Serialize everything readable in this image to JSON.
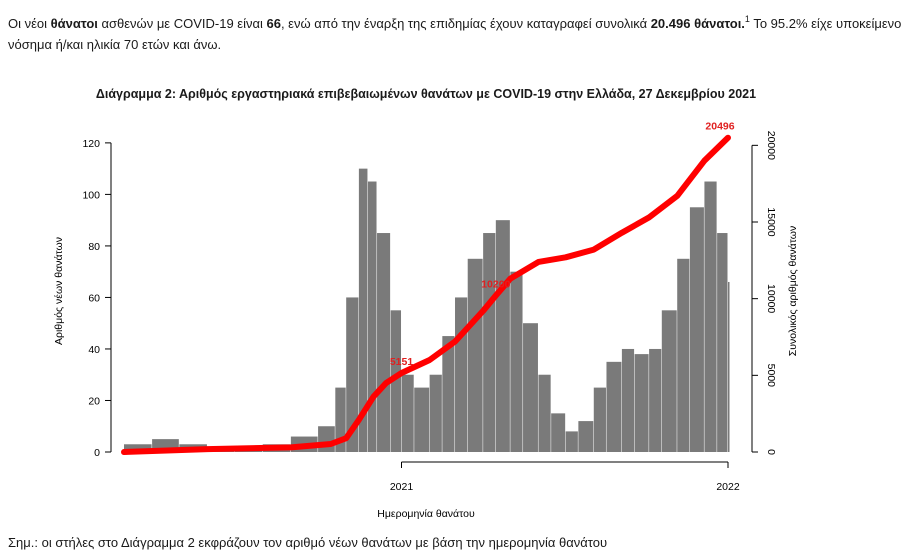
{
  "intro": {
    "p1": "Οι νέοι ",
    "b1": "θάνατοι",
    "p2": " ασθενών με COVID-19 είναι ",
    "b2": "66",
    "p3": ", ενώ από την έναρξη της επιδημίας έχουν καταγραφεί συνολικά ",
    "b3": "20.496 θάνατοι.",
    "sup": "1",
    "p4": " Το 95.2% είχε υποκείμενο νόσημα ή/και ηλικία 70 ετών και άνω."
  },
  "footnote": "Σημ.: οι στήλες στο Διάγραμμα 2 εκφράζουν τον αριθμό νέων θανάτων με βάση την ημερομηνία θανάτου",
  "colors": {
    "bars": "#7a7a7a",
    "cumulative_line": "#ff0000",
    "annotation": "#e02020"
  },
  "chart_data": {
    "type": "bar",
    "title": "Διάγραμμα 2: Αριθμός εργαστηριακά επιβεβαιωμένων θανάτων με COVID-19 στην Ελλάδα, 27 Δεκεμβρίου 2021",
    "xlabel": "Ημερομηνία θανάτου",
    "ylabel": "Αριθμός νέων θανάτων",
    "y2label": "Συνολικός αριθμός θανάτων",
    "x_ticks": [
      "2021",
      "2022"
    ],
    "yticks": [
      "0",
      "20",
      "40",
      "60",
      "80",
      "100",
      "120"
    ],
    "y2ticks": [
      "0",
      "5000",
      "10000",
      "15000",
      "20000"
    ],
    "ylim": [
      0,
      125
    ],
    "y2lim": [
      0,
      21000
    ],
    "x_range": [
      "2020-03-01",
      "2021-12-27"
    ],
    "series": [
      {
        "kind": "bar",
        "values_by_period": [
          {
            "period": "2020-03-01",
            "value": 3
          },
          {
            "period": "2020-04-01",
            "value": 5
          },
          {
            "period": "2020-05-01",
            "value": 3
          },
          {
            "period": "2020-06-01",
            "value": 1
          },
          {
            "period": "2020-07-01",
            "value": 1
          },
          {
            "period": "2020-08-01",
            "value": 3
          },
          {
            "period": "2020-09-01",
            "value": 6
          },
          {
            "period": "2020-10-01",
            "value": 10
          },
          {
            "period": "2020-10-20",
            "value": 25
          },
          {
            "period": "2020-11-01",
            "value": 60
          },
          {
            "period": "2020-11-15",
            "value": 110
          },
          {
            "period": "2020-11-25",
            "value": 105
          },
          {
            "period": "2020-12-05",
            "value": 85
          },
          {
            "period": "2020-12-20",
            "value": 55
          },
          {
            "period": "2021-01-01",
            "value": 30
          },
          {
            "period": "2021-01-15",
            "value": 25
          },
          {
            "period": "2021-02-01",
            "value": 30
          },
          {
            "period": "2021-02-15",
            "value": 45
          },
          {
            "period": "2021-03-01",
            "value": 60
          },
          {
            "period": "2021-03-15",
            "value": 75
          },
          {
            "period": "2021-04-01",
            "value": 85
          },
          {
            "period": "2021-04-15",
            "value": 90
          },
          {
            "period": "2021-05-01",
            "value": 70
          },
          {
            "period": "2021-05-15",
            "value": 50
          },
          {
            "period": "2021-06-01",
            "value": 30
          },
          {
            "period": "2021-06-15",
            "value": 15
          },
          {
            "period": "2021-07-01",
            "value": 8
          },
          {
            "period": "2021-07-15",
            "value": 12
          },
          {
            "period": "2021-08-01",
            "value": 25
          },
          {
            "period": "2021-08-15",
            "value": 35
          },
          {
            "period": "2021-09-01",
            "value": 40
          },
          {
            "period": "2021-09-15",
            "value": 38
          },
          {
            "period": "2021-10-01",
            "value": 40
          },
          {
            "period": "2021-10-15",
            "value": 55
          },
          {
            "period": "2021-11-01",
            "value": 75
          },
          {
            "period": "2021-11-15",
            "value": 95
          },
          {
            "period": "2021-12-01",
            "value": 105
          },
          {
            "period": "2021-12-15",
            "value": 85
          },
          {
            "period": "2021-12-27",
            "value": 66
          }
        ]
      },
      {
        "kind": "line",
        "points": [
          {
            "x": "2020-03-01",
            "y": 0
          },
          {
            "x": "2020-06-01",
            "y": 190
          },
          {
            "x": "2020-09-01",
            "y": 300
          },
          {
            "x": "2020-10-15",
            "y": 520
          },
          {
            "x": "2020-11-01",
            "y": 900
          },
          {
            "x": "2020-11-15",
            "y": 2100
          },
          {
            "x": "2020-12-01",
            "y": 3600
          },
          {
            "x": "2020-12-15",
            "y": 4500
          },
          {
            "x": "2021-01-01",
            "y": 5151
          },
          {
            "x": "2021-02-01",
            "y": 6000
          },
          {
            "x": "2021-03-01",
            "y": 7200
          },
          {
            "x": "2021-04-01",
            "y": 9200
          },
          {
            "x": "2021-04-15",
            "y": 10200
          },
          {
            "x": "2021-05-01",
            "y": 11300
          },
          {
            "x": "2021-06-01",
            "y": 12400
          },
          {
            "x": "2021-07-01",
            "y": 12700
          },
          {
            "x": "2021-08-01",
            "y": 13200
          },
          {
            "x": "2021-09-01",
            "y": 14300
          },
          {
            "x": "2021-10-01",
            "y": 15300
          },
          {
            "x": "2021-11-01",
            "y": 16700
          },
          {
            "x": "2021-12-01",
            "y": 19000
          },
          {
            "x": "2021-12-27",
            "y": 20496
          }
        ]
      }
    ],
    "annotations": [
      {
        "x": "2021-01-01",
        "y": 5151,
        "text": "5151"
      },
      {
        "x": "2021-04-15",
        "y": 10200,
        "text": "10200"
      },
      {
        "x": "2021-12-27",
        "y": 20496,
        "text": "20496"
      }
    ]
  }
}
